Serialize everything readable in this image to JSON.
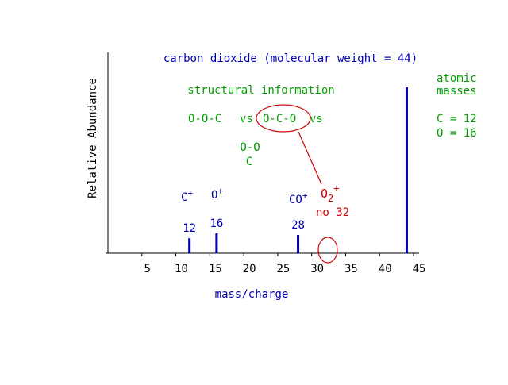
{
  "colors": {
    "axis": "#000000",
    "bar": "#0000b4",
    "blue_text": "#0000b4",
    "green_text": "#00a000",
    "red": "#d00000"
  },
  "chart_data": {
    "type": "bar",
    "title": "carbon dioxide (molecular weight = 44)",
    "xlabel": "mass/charge",
    "ylabel": "Relative Abundance",
    "xlim": [
      0,
      45
    ],
    "ylim": [
      0,
      100
    ],
    "xticks": [
      5,
      10,
      15,
      20,
      25,
      30,
      35,
      40,
      45
    ],
    "grid": false,
    "bars": [
      {
        "x": 12,
        "value": 9,
        "label": "12"
      },
      {
        "x": 16,
        "value": 12,
        "label": "16"
      },
      {
        "x": 28,
        "value": 11,
        "label": "28"
      },
      {
        "x": 44,
        "value": 100,
        "label": ""
      }
    ],
    "ion_labels": [
      {
        "base": "C",
        "sup": "+",
        "sub": ""
      },
      {
        "base": "O",
        "sup": "+",
        "sub": ""
      },
      {
        "base": "CO",
        "sup": "+",
        "sub": ""
      }
    ],
    "annotations": {
      "structural_heading": "structural information",
      "structures_line": [
        "O-O-C",
        "vs",
        "O-C-O",
        "vs"
      ],
      "ring_top": "O-O",
      "ring_bottom": "C",
      "o2_base": "O",
      "o2_sub": "2",
      "o2_sup": "+",
      "no32": "no 32",
      "atomic_heading": [
        "atomic",
        "masses"
      ],
      "atomic_values": [
        "C = 12",
        "O = 16"
      ]
    }
  }
}
